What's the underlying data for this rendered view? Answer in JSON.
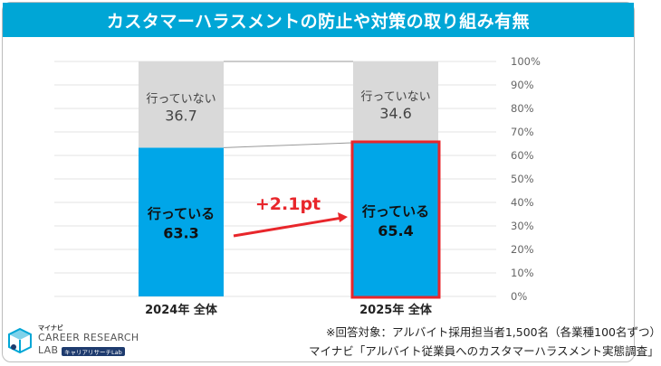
{
  "title": "カスタマーハラスメントの防止や対策の取り組み有無",
  "chart_data": {
    "type": "bar",
    "stacked": true,
    "categories": [
      "2024年 全体",
      "2025年 全体"
    ],
    "series": [
      {
        "name": "行っている",
        "values": [
          63.3,
          65.4
        ],
        "color": "#00a6e8"
      },
      {
        "name": "行っていない",
        "values": [
          36.7,
          34.6
        ],
        "color": "#d9d9d9"
      }
    ],
    "ylim": [
      0,
      100
    ],
    "y_ticks": [
      "0%",
      "10%",
      "20%",
      "30%",
      "40%",
      "50%",
      "60%",
      "70%",
      "80%",
      "90%",
      "100%"
    ],
    "annotation": "+2.1pt",
    "highlight_color": "#e8262b",
    "grid": true
  },
  "notes": {
    "line1": "※回答対象：アルバイト採用担当者1,500名（各業種100名ずつ）",
    "line2": "マイナビ「アルバイト従業員へのカスタマーハラスメント実態調査」"
  },
  "logo": {
    "top": "マイナビ",
    "line1": "CAREER RESEARCH",
    "line2": "LAB",
    "sub": "キャリアリサーチLab"
  }
}
